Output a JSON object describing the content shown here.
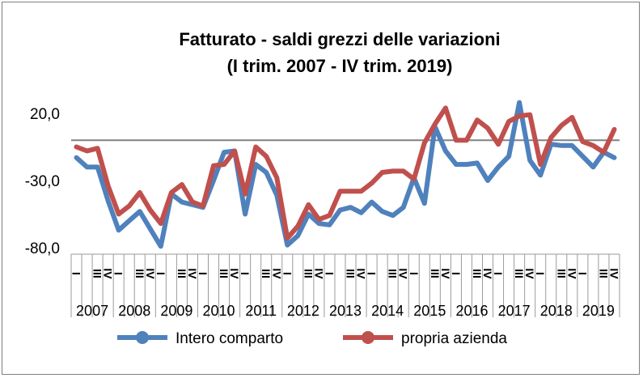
{
  "chart_data": {
    "type": "line",
    "title": "Fatturato - saldi grezzi delle variazioni",
    "subtitle": "(I trim. 2007 - IV trim. 2019)",
    "xlabel": "",
    "ylabel": "",
    "ylim": [
      -80,
      20
    ],
    "yticks": [
      20,
      -30,
      -80
    ],
    "ytick_labels": [
      "20,0",
      "-30,0",
      "-80,0"
    ],
    "reference_line": 0,
    "years": [
      "2007",
      "2008",
      "2009",
      "2010",
      "2011",
      "2012",
      "2013",
      "2014",
      "2015",
      "2016",
      "2017",
      "2018",
      "2019"
    ],
    "quarter_labels": [
      "I",
      "II",
      "III",
      "IV"
    ],
    "grid": false,
    "legend_position": "bottom",
    "series": [
      {
        "name": "Intero comparto",
        "color": "#4f81bd",
        "values": [
          -13,
          -20,
          -20,
          -45,
          -67,
          -60,
          -53,
          -66,
          -79,
          -40,
          -46,
          -48,
          -50,
          -30,
          -9,
          -8,
          -55,
          -18,
          -24,
          -41,
          -78,
          -71,
          -55,
          -62,
          -63,
          -52,
          -50,
          -54,
          -46,
          -53,
          -56,
          -50,
          -28,
          -47,
          10,
          -8,
          -18,
          -18,
          -17,
          -30,
          -20,
          -12,
          28,
          -15,
          -26,
          -3,
          -4,
          -4,
          -12,
          -20,
          -9,
          -13
        ]
      },
      {
        "name": "propria azienda",
        "color": "#c0504d",
        "values": [
          -5,
          -8,
          -6,
          -34,
          -55,
          -49,
          -39,
          -52,
          -62,
          -39,
          -33,
          -46,
          -49,
          -19,
          -18,
          -8,
          -40,
          -5,
          -12,
          -28,
          -73,
          -64,
          -48,
          -59,
          -56,
          -38,
          -38,
          -38,
          -32,
          -24,
          -23,
          -23,
          -29,
          -2,
          12,
          24,
          0,
          0,
          15,
          9,
          -3,
          14,
          18,
          19,
          -18,
          2,
          11,
          17,
          -1,
          -4,
          -9,
          8
        ]
      }
    ]
  }
}
